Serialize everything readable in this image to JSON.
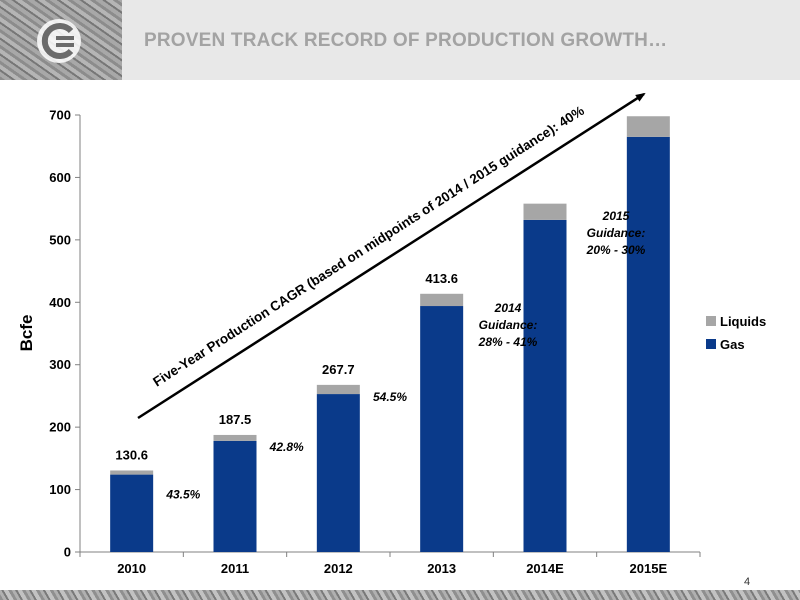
{
  "header": {
    "title": "PROVEN TRACK RECORD OF PRODUCTION GROWTH…",
    "logo_icon": "company-logo-icon"
  },
  "footer": {
    "page_number": "4"
  },
  "colors": {
    "gas": "#0a3a8a",
    "liquids": "#a6a6a6",
    "title": "#a3a3a3"
  },
  "chart_data": {
    "type": "bar",
    "stacked": true,
    "ylabel": "Bcfe",
    "ylim": [
      0,
      700
    ],
    "yticks": [
      0,
      100,
      200,
      300,
      400,
      500,
      600,
      700
    ],
    "categories": [
      "2010",
      "2011",
      "2012",
      "2013",
      "2014E",
      "2015E"
    ],
    "series": [
      {
        "name": "Gas",
        "values": [
          124,
          178,
          253,
          394,
          532,
          665
        ]
      },
      {
        "name": "Liquids",
        "values": [
          6.6,
          9.5,
          14.7,
          19.6,
          26,
          33
        ]
      }
    ],
    "total_labels": [
      "130.6",
      "187.5",
      "267.7",
      "413.6",
      "",
      ""
    ],
    "growth_labels": [
      "43.5%",
      "42.8%",
      "54.5%"
    ],
    "guidance_2014": [
      "2014",
      "Guidance:",
      "28% - 41%"
    ],
    "guidance_2015": [
      "2015",
      "Guidance:",
      "20% - 30%"
    ],
    "cagr_annotation": "Five-Year Production CAGR (based on midpoints of 2014 / 2015 guidance):  40%",
    "legend": {
      "position": "right",
      "entries": [
        "Liquids",
        "Gas"
      ]
    },
    "grid": false
  }
}
